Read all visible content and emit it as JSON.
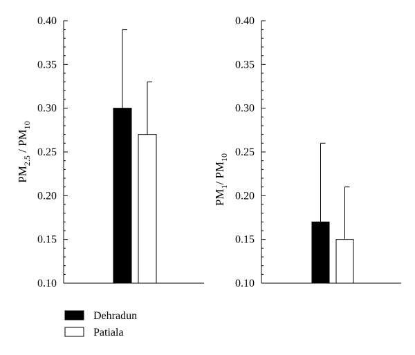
{
  "chart_data": [
    {
      "type": "bar",
      "categories": [
        "Dehradun",
        "Patiala"
      ],
      "series": [
        {
          "name": "Dehradun",
          "value": 0.3,
          "error": 0.09,
          "color": "#000000"
        },
        {
          "name": "Patiala",
          "value": 0.27,
          "error": 0.06,
          "color": "#ffffff"
        }
      ],
      "ylabel": {
        "main": "PM",
        "sub": "2.5",
        "sep": " / PM",
        "sub2": "10"
      },
      "ylim": [
        0.1,
        0.4
      ],
      "yticks": [
        "0.10",
        "0.15",
        "0.20",
        "0.25",
        "0.30",
        "0.35",
        "0.40"
      ],
      "grid": false
    },
    {
      "type": "bar",
      "categories": [
        "Dehradun",
        "Patiala"
      ],
      "series": [
        {
          "name": "Dehradun",
          "value": 0.17,
          "error": 0.09,
          "color": "#000000"
        },
        {
          "name": "Patiala",
          "value": 0.15,
          "error": 0.06,
          "color": "#ffffff"
        }
      ],
      "ylabel": {
        "main": "PM",
        "sub": "1",
        "sep": "/ PM",
        "sub2": "10"
      },
      "ylim": [
        0.1,
        0.4
      ],
      "yticks": [
        "0.10",
        "0.15",
        "0.20",
        "0.25",
        "0.30",
        "0.35",
        "0.40"
      ],
      "grid": false
    }
  ],
  "legend": {
    "placement": "bottom-left",
    "items": [
      {
        "label": "Dehradun",
        "color": "#000000"
      },
      {
        "label": "Patiala",
        "color": "#ffffff"
      }
    ]
  }
}
